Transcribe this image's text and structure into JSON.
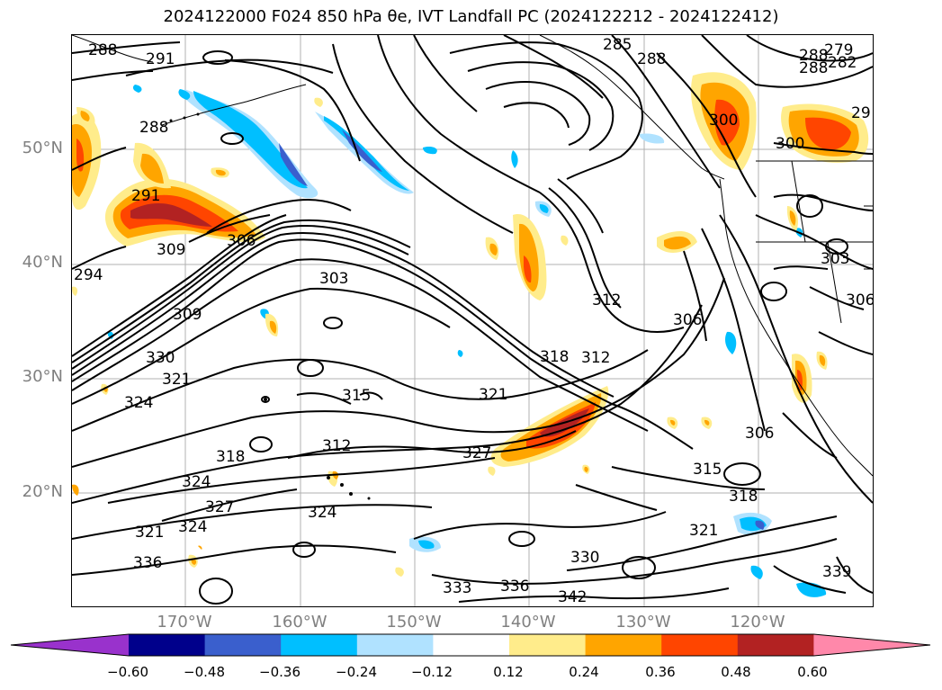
{
  "title": "2024122000 F024 850 hPa θe, IVT Landfall PC (2024122212 - 2024122412)",
  "lat_labels": [
    "50°N",
    "40°N",
    "30°N",
    "20°N"
  ],
  "lon_labels": [
    "170°W",
    "160°W",
    "150°W",
    "140°W",
    "130°W",
    "120°W"
  ],
  "contour_labels": [
    "288",
    "291",
    "288",
    "291",
    "294",
    "309",
    "306",
    "303",
    "309",
    "330",
    "321",
    "324",
    "327",
    "315",
    "321",
    "318",
    "312",
    "318",
    "312",
    "324",
    "327",
    "324",
    "321",
    "324",
    "336",
    "333",
    "336",
    "330",
    "342",
    "306",
    "315",
    "318",
    "321",
    "339",
    "285",
    "288",
    "279",
    "288",
    "282",
    "288",
    "300",
    "300",
    "303",
    "306",
    "306",
    "312",
    "29"
  ],
  "colorbar": {
    "ticks": [
      "−0.60",
      "−0.48",
      "−0.36",
      "−0.24",
      "−0.12",
      "0.12",
      "0.24",
      "0.36",
      "0.48",
      "0.60"
    ],
    "colors": [
      "#9932cc",
      "#00008b",
      "#3a5fcd",
      "#00bfff",
      "#b0e2ff",
      "#ffffff",
      "#ffec8b",
      "#ffa500",
      "#ff4500",
      "#b22222",
      "#ff88aa"
    ]
  }
}
